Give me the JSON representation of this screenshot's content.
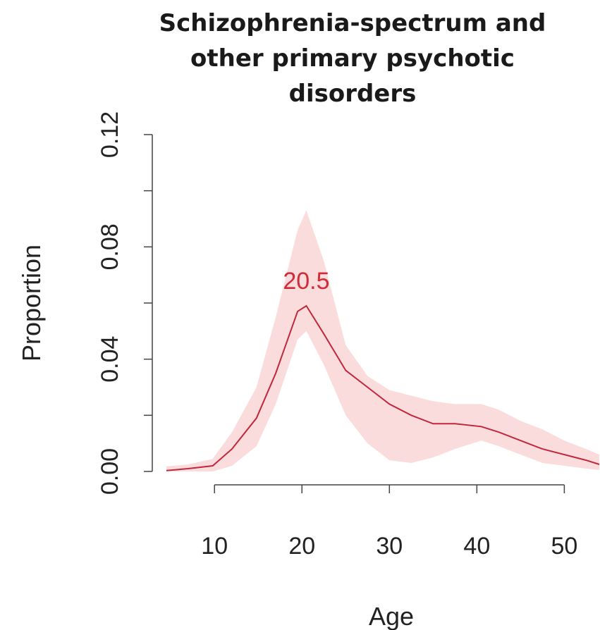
{
  "chart_data": {
    "type": "line",
    "title_lines": [
      "Schizophrenia-spectrum and",
      "other primary psychotic",
      "disorders"
    ],
    "xlabel": "Age",
    "ylabel": "Proportion",
    "xlim": [
      4.5,
      54
    ],
    "ylim": [
      0,
      0.12
    ],
    "x_ticks": [
      10,
      20,
      30,
      40,
      50
    ],
    "x_tick_labels": [
      "10",
      "20",
      "30",
      "40",
      "50"
    ],
    "y_ticks": [
      0,
      0.02,
      0.04,
      0.06,
      0.08,
      0.1,
      0.12
    ],
    "y_tick_labels": [
      "0.00",
      "",
      "0.04",
      "",
      "0.08",
      "",
      "0.12"
    ],
    "colors": {
      "line": "#c0283c",
      "band": "#fbdcdc",
      "annotation": "#d22b37"
    },
    "annotation": {
      "text": "20.5",
      "x": 20.5
    },
    "series": [
      {
        "x": [
          4.5,
          7,
          9.8,
          12,
          14.8,
          17,
          19.5,
          20.5,
          22.5,
          25,
          27.5,
          30,
          32.5,
          35,
          37.5,
          40.5,
          42.5,
          45,
          47.5,
          50,
          52.5,
          54
        ],
        "y": [
          0.0003,
          0.001,
          0.002,
          0.008,
          0.019,
          0.035,
          0.057,
          0.059,
          0.049,
          0.036,
          0.03,
          0.024,
          0.02,
          0.017,
          0.017,
          0.016,
          0.014,
          0.011,
          0.008,
          0.006,
          0.004,
          0.0025
        ],
        "lower": [
          0.0,
          0.0,
          0.0,
          0.002,
          0.009,
          0.024,
          0.047,
          0.05,
          0.038,
          0.02,
          0.01,
          0.004,
          0.003,
          0.005,
          0.008,
          0.011,
          0.009,
          0.006,
          0.003,
          0.002,
          0.001,
          0.0005
        ],
        "upper": [
          0.0018,
          0.0025,
          0.0045,
          0.014,
          0.03,
          0.055,
          0.086,
          0.093,
          0.075,
          0.045,
          0.034,
          0.029,
          0.027,
          0.025,
          0.024,
          0.024,
          0.022,
          0.018,
          0.015,
          0.011,
          0.008,
          0.006
        ]
      }
    ]
  }
}
